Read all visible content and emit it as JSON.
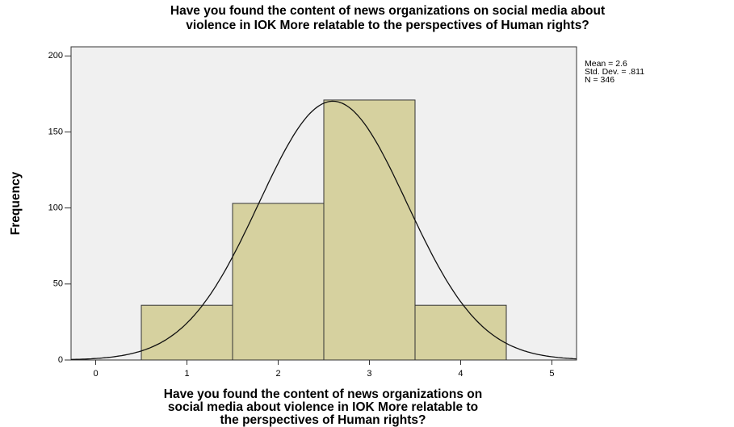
{
  "chart_data": {
    "type": "histogram",
    "title": [
      "Have you found the content of news organizations on social media about",
      "violence in IOK More relatable to the perspectives of Human rights?"
    ],
    "x_label": [
      "Have you found the content of news organizations on",
      "social media about violence in IOK More relatable to",
      "the perspectives of Human rights?"
    ],
    "y_label": "Frequency",
    "bins": [
      0.5,
      1.5,
      2.5,
      3.5,
      4.5
    ],
    "values": [
      36,
      103,
      171,
      36
    ],
    "color": "#d6d19f",
    "stats": [
      {
        "label": "Mean = 2.6",
        "value": 2.6
      },
      {
        "label": "Std. Dev. = .811",
        "value": 0.811
      },
      {
        "label": "N = 346",
        "value": 346
      }
    ],
    "normal_curve": true,
    "xlim": [
      -0.27,
      5.27
    ],
    "xticks": [
      0,
      1,
      2,
      3,
      4,
      5
    ],
    "ylim": [
      0,
      206
    ],
    "yticks": [
      0,
      50,
      100,
      150,
      200
    ]
  }
}
